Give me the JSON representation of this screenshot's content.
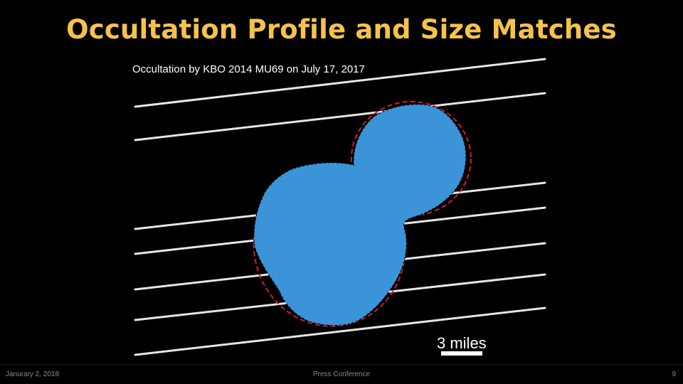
{
  "slide": {
    "title": "Occultation Profile and Size Matches",
    "figure_caption": "Occultation by KBO 2014 MU69 on July 17, 2017",
    "scale_label": "3 miles"
  },
  "colors": {
    "title": "#f6c24a",
    "background": "#000000",
    "chord_lines": "#e6e6e6",
    "profile_fill": "#3b93d8",
    "fit_outline": "#d11f2a",
    "footer_text": "#8c8c8c"
  },
  "footer": {
    "date": "Janurary 2, 2018",
    "event": "Press Conference",
    "page": "9"
  }
}
